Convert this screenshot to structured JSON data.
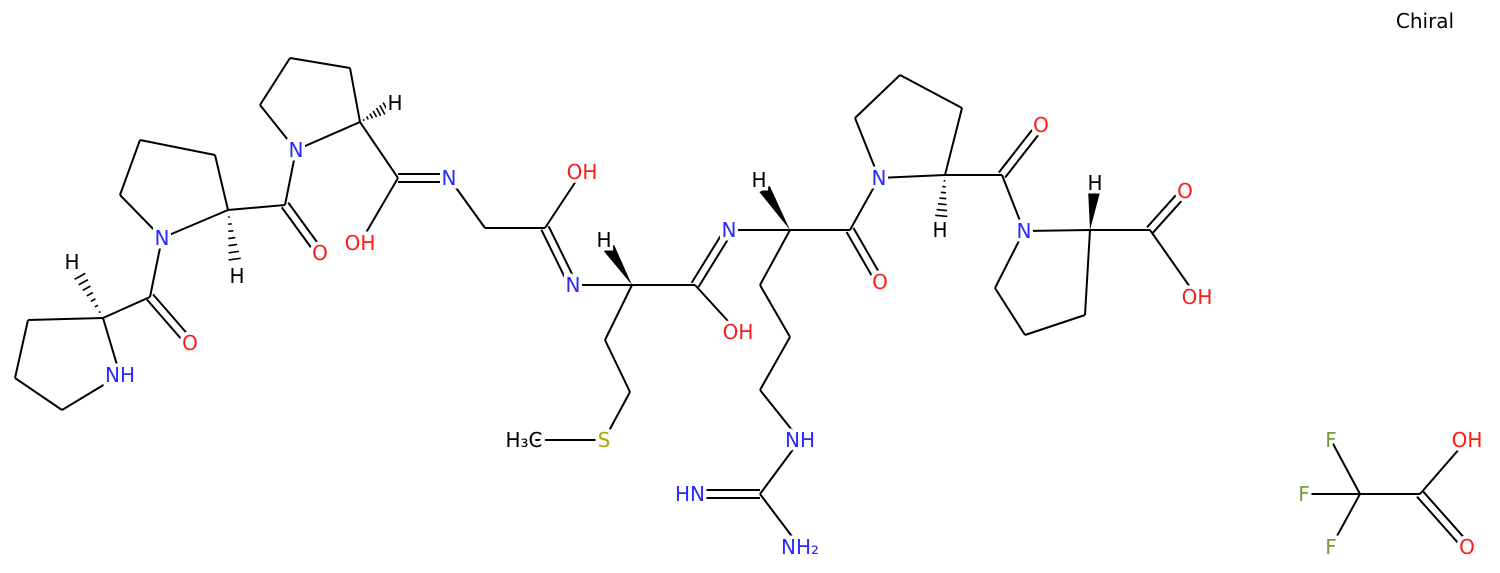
{
  "header": {
    "chirality": "Chiral"
  },
  "molecule": {
    "atoms": [
      "NH",
      "O",
      "N",
      "H",
      "O",
      "H",
      "N",
      "H",
      "OH",
      "N",
      "OH",
      "N",
      "H",
      "OH",
      "N",
      "H",
      "O",
      "N",
      "H",
      "O",
      "N",
      "H",
      "O",
      "OH",
      "S",
      "H₃C",
      "NH",
      "HN",
      "NH₂"
    ]
  },
  "counterion": {
    "atoms": [
      "F",
      "F",
      "F",
      "OH",
      "O"
    ]
  }
}
